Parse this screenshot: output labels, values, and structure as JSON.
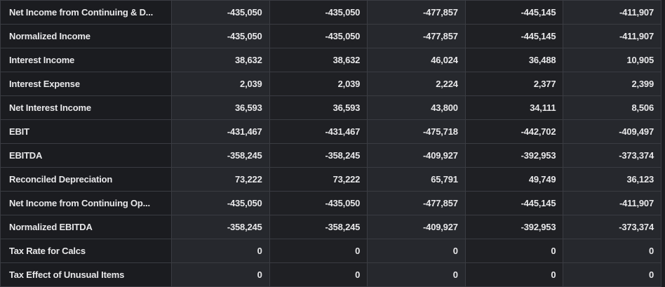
{
  "table": {
    "rows": [
      [
        "Net Income from Continuing & D...",
        "-435,050",
        "-435,050",
        "-477,857",
        "-445,145",
        "-411,907"
      ],
      [
        "Normalized Income",
        "-435,050",
        "-435,050",
        "-477,857",
        "-445,145",
        "-411,907"
      ],
      [
        "Interest Income",
        "38,632",
        "38,632",
        "46,024",
        "36,488",
        "10,905"
      ],
      [
        "Interest Expense",
        "2,039",
        "2,039",
        "2,224",
        "2,377",
        "2,399"
      ],
      [
        "Net Interest Income",
        "36,593",
        "36,593",
        "43,800",
        "34,111",
        "8,506"
      ],
      [
        "EBIT",
        "-431,467",
        "-431,467",
        "-475,718",
        "-442,702",
        "-409,497"
      ],
      [
        "EBITDA",
        "-358,245",
        "-358,245",
        "-409,927",
        "-392,953",
        "-373,374"
      ],
      [
        "Reconciled Depreciation",
        "73,222",
        "73,222",
        "65,791",
        "49,749",
        "36,123"
      ],
      [
        "Net Income from Continuing Op...",
        "-435,050",
        "-435,050",
        "-477,857",
        "-445,145",
        "-411,907"
      ],
      [
        "Normalized EBITDA",
        "-358,245",
        "-358,245",
        "-409,927",
        "-392,953",
        "-373,374"
      ],
      [
        "Tax Rate for Calcs",
        "0",
        "0",
        "0",
        "0",
        "0"
      ],
      [
        "Tax Effect of Unusual Items",
        "0",
        "0",
        "0",
        "0",
        "0"
      ]
    ]
  }
}
